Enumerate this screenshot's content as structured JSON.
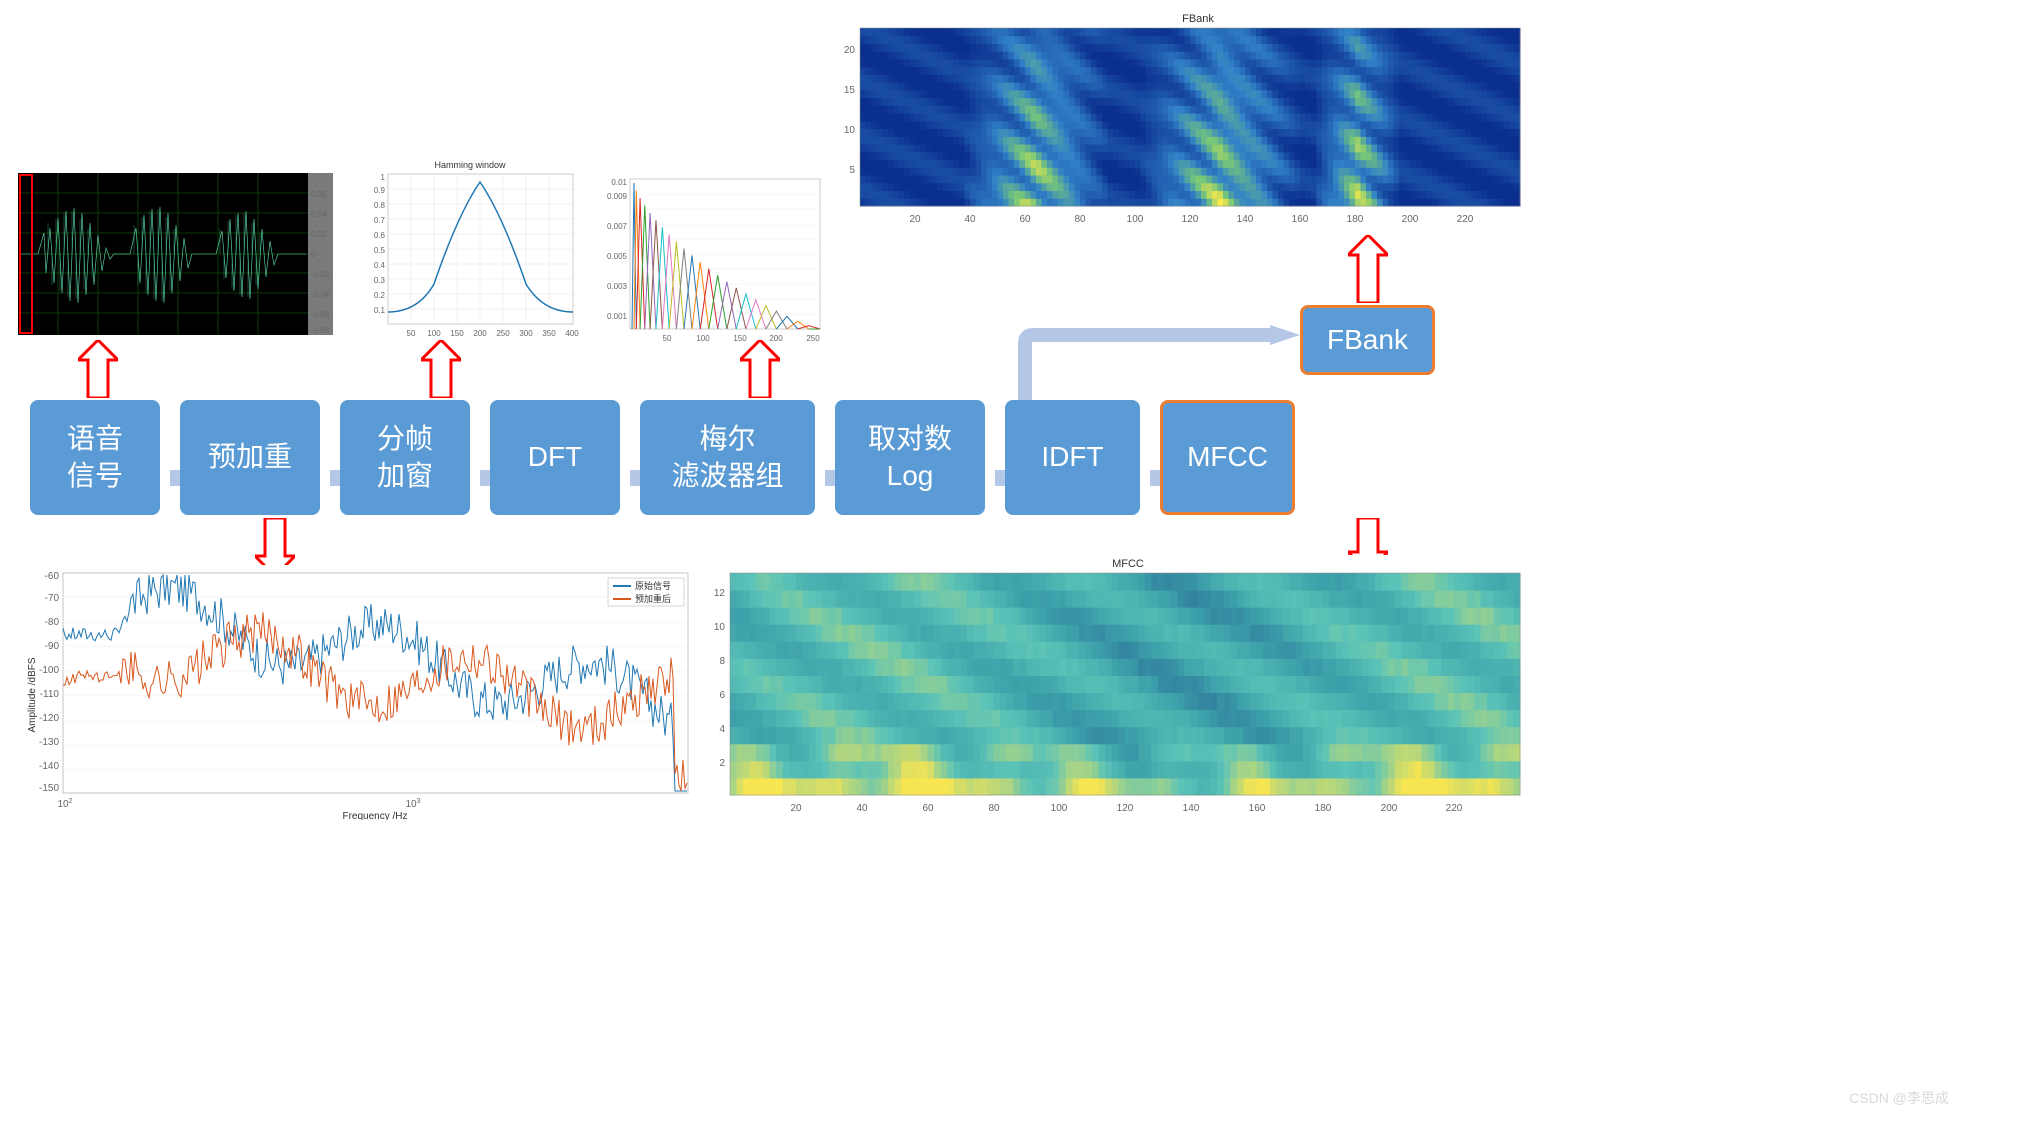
{
  "flow": {
    "boxes": [
      {
        "id": "speech",
        "label_lines": [
          "语音",
          "信号"
        ],
        "w": 130
      },
      {
        "id": "preemph",
        "label_lines": [
          "预加重"
        ],
        "w": 140
      },
      {
        "id": "framing",
        "label_lines": [
          "分帧",
          "加窗"
        ],
        "w": 130
      },
      {
        "id": "dft",
        "label_lines": [
          "DFT"
        ],
        "w": 130
      },
      {
        "id": "mel",
        "label_lines": [
          "梅尔",
          "滤波器组"
        ],
        "w": 175
      },
      {
        "id": "log",
        "label_lines": [
          "取对数",
          "Log"
        ],
        "w": 150
      },
      {
        "id": "idft",
        "label_lines": [
          "IDFT"
        ],
        "w": 135
      },
      {
        "id": "mfcc",
        "label_lines": [
          "MFCC"
        ],
        "w": 135,
        "orange": true
      }
    ],
    "fbank_box": {
      "label": "FBank",
      "w": 135,
      "orange": true
    },
    "box_bg": "#5b9bd5",
    "box_fg": "#ffffff",
    "orange_border": "#ed7d31",
    "arrow_fill": "#b4c7e7"
  },
  "red_arrow_color": "#ff0000",
  "waveform": {
    "bg": "#000000",
    "grid": "#0a3a0a",
    "wave_color": "#5ee6b0",
    "yticks": [
      0.06,
      0.04,
      0.02,
      0,
      -0.02,
      -0.04,
      -0.06,
      -0.08
    ],
    "frame_box": "#ff0000"
  },
  "hamming": {
    "title": "Hamming window",
    "line_color": "#1f77b4",
    "xticks": [
      50,
      100,
      150,
      200,
      250,
      300,
      350,
      400
    ],
    "yticks": [
      0.1,
      0.2,
      0.3,
      0.4,
      0.5,
      0.6,
      0.7,
      0.8,
      0.9,
      1.0
    ],
    "xlim": [
      0,
      400
    ],
    "ylim": [
      0,
      1.0
    ]
  },
  "melbank": {
    "colors": [
      "#1f77b4",
      "#ff7f0e",
      "#d62728",
      "#2ca02c",
      "#9467bd",
      "#8c564b",
      "#17becf",
      "#e377c2",
      "#bcbd22",
      "#7f7f7f"
    ],
    "xticks": [
      50,
      100,
      150,
      200,
      250
    ],
    "yticks": [
      0.001,
      0.002,
      0.003,
      0.004,
      0.005,
      0.006,
      0.007,
      0.008,
      0.009,
      0.01
    ],
    "xlim": [
      0,
      260
    ],
    "ylim": [
      0,
      0.01
    ],
    "n_filters": 24
  },
  "fbank_spec": {
    "title": "FBank",
    "xticks": [
      20,
      40,
      60,
      80,
      100,
      120,
      140,
      160,
      180,
      200,
      220
    ],
    "yticks": [
      5,
      10,
      15,
      20
    ],
    "xlim": [
      0,
      240
    ],
    "ylim": [
      0,
      23
    ],
    "cmap_low": "#0b2f8f",
    "cmap_mid": "#2b8cbe",
    "cmap_high": "#ffe94a"
  },
  "mfcc_spec": {
    "title": "MFCC",
    "xticks": [
      20,
      40,
      60,
      80,
      100,
      120,
      140,
      160,
      180,
      200,
      220
    ],
    "yticks": [
      2,
      4,
      6,
      8,
      10,
      12
    ],
    "xlim": [
      0,
      240
    ],
    "ylim": [
      0,
      13
    ],
    "cmap_low": "#2b6aa0",
    "cmap_mid": "#5cc4b8",
    "cmap_high": "#f7e552"
  },
  "preemph_plot": {
    "legend": [
      "原始信号",
      "预加重后"
    ],
    "colors": [
      "#1f77b4",
      "#d9581e"
    ],
    "xlabel": "Frequency /Hz",
    "ylabel": "Amplitude /dBFS",
    "xticks_labels": [
      "10²",
      "10³"
    ],
    "yticks": [
      -60,
      -70,
      -80,
      -90,
      -100,
      -110,
      -120,
      -130,
      -140,
      -150
    ],
    "xlim": [
      100,
      5000
    ],
    "ylim": [
      -150,
      -60
    ]
  },
  "watermark": "CSDN @李思成"
}
